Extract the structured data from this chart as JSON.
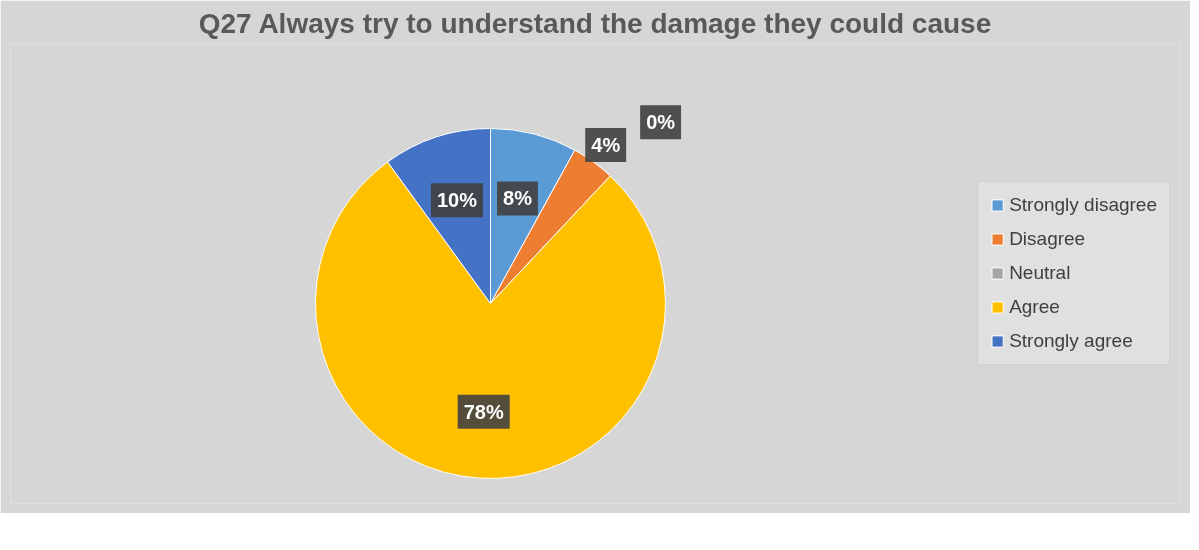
{
  "chart_data": {
    "type": "pie",
    "title": "Q27 Always try to understand the damage they could cause",
    "categories": [
      "Strongly disagree",
      "Disagree",
      "Neutral",
      "Agree",
      "Strongly agree"
    ],
    "values": [
      8,
      4,
      0,
      78,
      10
    ],
    "value_labels": [
      "8%",
      "4%",
      "0%",
      "78%",
      "10%"
    ],
    "colors": [
      "#5b9bd5",
      "#ed7d31",
      "#a5a5a5",
      "#ffc000",
      "#4472c4"
    ],
    "legend": "right"
  }
}
